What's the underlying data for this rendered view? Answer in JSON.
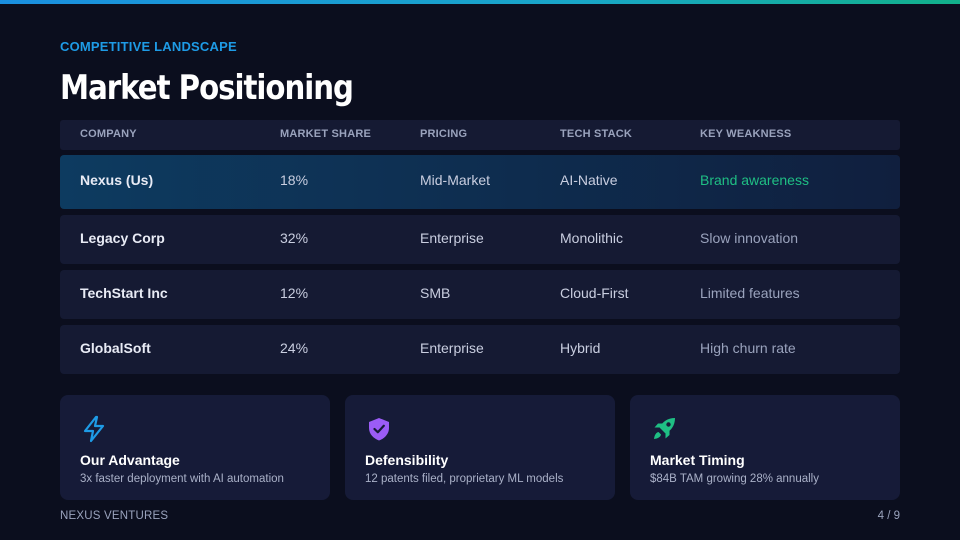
{
  "header": {
    "eyebrow": "COMPETITIVE LANDSCAPE",
    "title": "Market Positioning"
  },
  "table": {
    "columns": [
      "COMPANY",
      "MARKET SHARE",
      "PRICING",
      "TECH STACK",
      "KEY WEAKNESS"
    ],
    "rows": [
      {
        "company": "Nexus (Us)",
        "share": "18%",
        "pricing": "Mid-Market",
        "tech": "AI-Native",
        "weakness": "Brand awareness"
      },
      {
        "company": "Legacy Corp",
        "share": "32%",
        "pricing": "Enterprise",
        "tech": "Monolithic",
        "weakness": "Slow innovation"
      },
      {
        "company": "TechStart Inc",
        "share": "12%",
        "pricing": "SMB",
        "tech": "Cloud-First",
        "weakness": "Limited features"
      },
      {
        "company": "GlobalSoft",
        "share": "24%",
        "pricing": "Enterprise",
        "tech": "Hybrid",
        "weakness": "High churn rate"
      }
    ]
  },
  "cards": [
    {
      "icon": "lightning-bolt-icon",
      "title": "Our Advantage",
      "desc": "3x faster deployment with AI automation",
      "color": "#1e9be6"
    },
    {
      "icon": "shield-check-icon",
      "title": "Defensibility",
      "desc": "12 patents filed, proprietary ML models",
      "color": "#9b5cf6"
    },
    {
      "icon": "rocket-icon",
      "title": "Market Timing",
      "desc": "$84B TAM growing 28% annually",
      "color": "#1fbf84"
    }
  ],
  "footer": {
    "brand": "NEXUS VENTURES",
    "page": "4 / 9"
  },
  "colors": {
    "background": "#0b0e1e",
    "accent_blue": "#1e9be6",
    "accent_green": "#1fbf84",
    "accent_purple": "#9b5cf6",
    "panel": "#151a33"
  }
}
